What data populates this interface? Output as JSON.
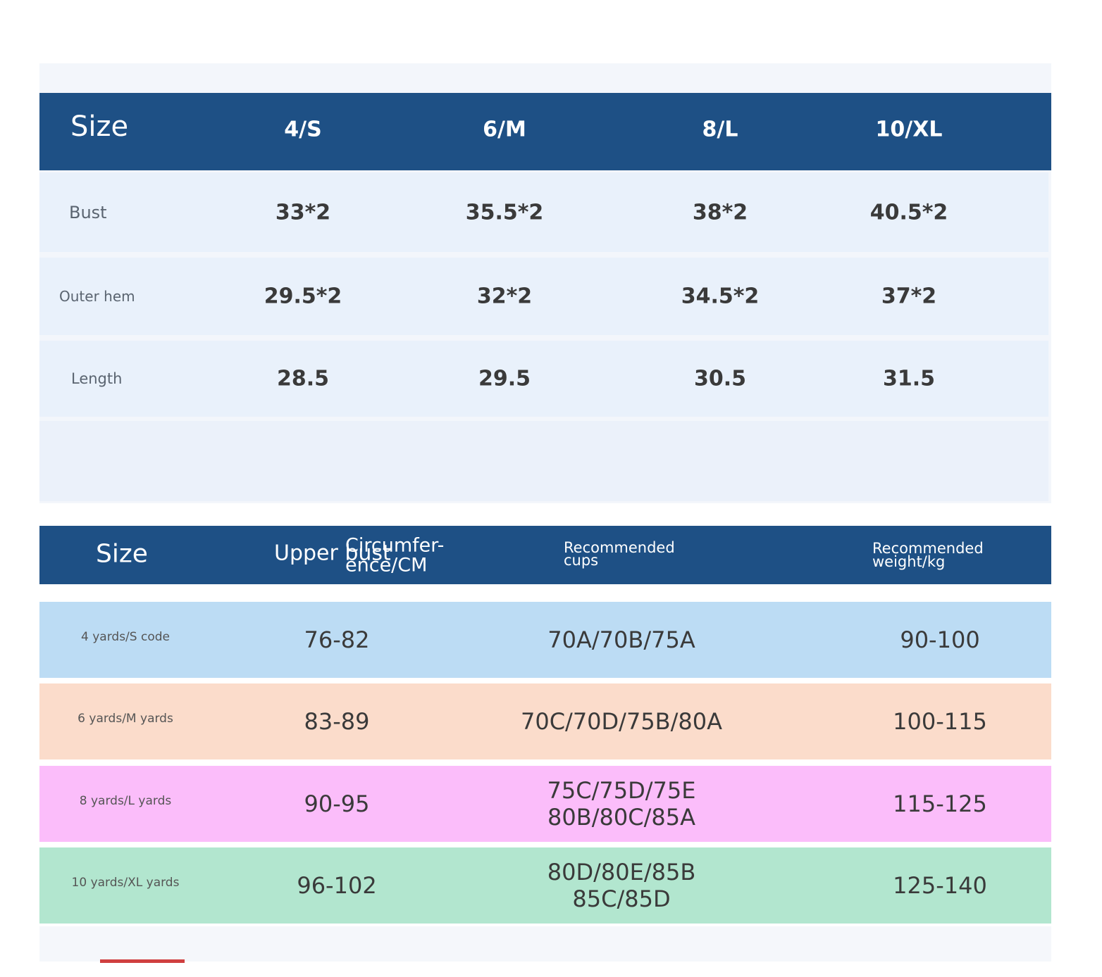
{
  "table1": {
    "header": [
      "Size",
      "4/S",
      "6/M",
      "8/L",
      "10/XL"
    ],
    "rows": [
      [
        "Bust",
        "33*2",
        "35.5*2",
        "38*2",
        "40.5*2"
      ],
      [
        "Outer hem",
        "29.5*2",
        "32*2",
        "34.5*2",
        "37*2"
      ],
      [
        "Length",
        "28.5",
        "29.5",
        "30.5",
        "31.5"
      ]
    ]
  },
  "table2": {
    "header": {
      "size": "Size",
      "upper_bust": "Upper bust",
      "circumference": [
        "Circumfer-",
        "ence/CM"
      ],
      "cups": [
        "Recommended",
        "cups"
      ],
      "weight": [
        "Recommended",
        "weight/kg"
      ]
    },
    "rows": [
      {
        "label": "4 yards/S code",
        "upper_bust": "76-82",
        "cups": [
          "70A/70B/75A"
        ],
        "weight": "90-100",
        "color": "#bcdcf4"
      },
      {
        "label": "6 yards/M yards",
        "upper_bust": "83-89",
        "cups": [
          "70C/70D/75B/80A"
        ],
        "weight": "100-115",
        "color": "#fbdccb"
      },
      {
        "label": "8 yards/L yards",
        "upper_bust": "90-95",
        "cups": [
          "75C/75D/75E",
          "80B/80C/85A"
        ],
        "weight": "115-125",
        "color": "#fbbdfa"
      },
      {
        "label": "10 yards/XL yards",
        "upper_bust": "96-102",
        "cups": [
          "80D/80E/85B",
          "85C/85D"
        ],
        "weight": "125-140",
        "color": "#b2e6cf"
      }
    ]
  }
}
